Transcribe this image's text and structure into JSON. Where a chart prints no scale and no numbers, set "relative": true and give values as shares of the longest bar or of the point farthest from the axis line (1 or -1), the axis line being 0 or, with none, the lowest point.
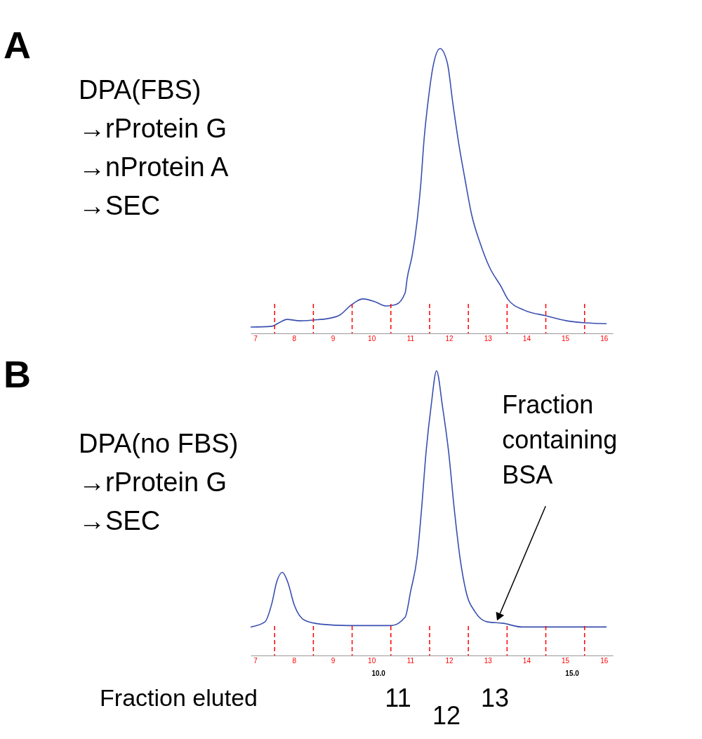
{
  "chart_data": [
    {
      "type": "line",
      "title": "A",
      "relative": true,
      "color": "#3a4fb0",
      "grid": false,
      "x": [
        6.7,
        7.25,
        7.43,
        7.64,
        7.97,
        8.33,
        8.7,
        9.0,
        9.29,
        9.6,
        9.91,
        10.2,
        10.45,
        10.69,
        10.74,
        10.87,
        11.0,
        11.09,
        11.18,
        11.29,
        11.41,
        11.59,
        11.78,
        11.92,
        12.08,
        12.23,
        12.41,
        12.63,
        12.86,
        13.17,
        13.35,
        13.77,
        14.31,
        14.86,
        15.34,
        15.89
      ],
      "values": [
        0.022,
        0.025,
        0.037,
        0.049,
        0.044,
        0.047,
        0.052,
        0.064,
        0.099,
        0.121,
        0.111,
        0.096,
        0.101,
        0.143,
        0.192,
        0.273,
        0.397,
        0.52,
        0.685,
        0.825,
        0.938,
        1.0,
        0.948,
        0.808,
        0.66,
        0.544,
        0.414,
        0.315,
        0.234,
        0.163,
        0.118,
        0.081,
        0.062,
        0.044,
        0.037,
        0.034
      ],
      "xlim": [
        6.7,
        16.05
      ],
      "xticks": [
        {
          "value": 6.82,
          "label": "7"
        },
        {
          "value": 7.82,
          "label": "8"
        },
        {
          "value": 8.82,
          "label": "9"
        },
        {
          "value": 9.82,
          "label": "10"
        },
        {
          "value": 10.82,
          "label": "11"
        },
        {
          "value": 11.82,
          "label": "12"
        },
        {
          "value": 12.82,
          "label": "13"
        },
        {
          "value": 13.82,
          "label": "14"
        },
        {
          "value": 14.82,
          "label": "15"
        },
        {
          "value": 15.82,
          "label": "16"
        }
      ],
      "ref_lines": [
        {
          "axis": "x",
          "value": 7.32,
          "color": "#ff0000",
          "line_style": "dashed"
        },
        {
          "axis": "x",
          "value": 8.32,
          "color": "#ff0000",
          "line_style": "dashed"
        },
        {
          "axis": "x",
          "value": 9.32,
          "color": "#ff0000",
          "line_style": "dashed"
        },
        {
          "axis": "x",
          "value": 10.32,
          "color": "#ff0000",
          "line_style": "dashed"
        },
        {
          "axis": "x",
          "value": 11.32,
          "color": "#ff0000",
          "line_style": "dashed"
        },
        {
          "axis": "x",
          "value": 12.32,
          "color": "#ff0000",
          "line_style": "dashed"
        },
        {
          "axis": "x",
          "value": 13.32,
          "color": "#ff0000",
          "line_style": "dashed"
        },
        {
          "axis": "x",
          "value": 14.32,
          "color": "#ff0000",
          "line_style": "dashed"
        },
        {
          "axis": "x",
          "value": 15.32,
          "color": "#ff0000",
          "line_style": "dashed"
        }
      ],
      "subtitle": "DPA(FBS)\n→rProtein G\n→nProtein A\n→SEC"
    },
    {
      "type": "line",
      "title": "B",
      "relative": true,
      "color": "#3a4fb0",
      "grid": false,
      "xlabel": "Fraction eluted",
      "x": [
        6.7,
        7.07,
        7.25,
        7.37,
        7.52,
        7.66,
        7.83,
        8.1,
        8.51,
        9.24,
        10.33,
        10.69,
        10.83,
        11.0,
        11.11,
        11.23,
        11.36,
        11.5,
        11.65,
        11.81,
        11.96,
        12.1,
        12.26,
        12.5,
        12.81,
        13.22,
        13.71,
        14.37,
        15.89
      ],
      "values": [
        0.1,
        0.118,
        0.184,
        0.257,
        0.292,
        0.257,
        0.176,
        0.123,
        0.11,
        0.105,
        0.105,
        0.135,
        0.225,
        0.348,
        0.51,
        0.716,
        0.877,
        1.0,
        0.877,
        0.716,
        0.51,
        0.348,
        0.225,
        0.152,
        0.118,
        0.113,
        0.1,
        0.1,
        0.1
      ],
      "xlim": [
        6.7,
        16.05
      ],
      "xticks": [
        {
          "value": 6.82,
          "label": "7"
        },
        {
          "value": 7.82,
          "label": "8"
        },
        {
          "value": 8.82,
          "label": "9"
        },
        {
          "value": 9.82,
          "label": "10"
        },
        {
          "value": 10.82,
          "label": "11"
        },
        {
          "value": 11.82,
          "label": "12"
        },
        {
          "value": 12.82,
          "label": "13"
        },
        {
          "value": 13.82,
          "label": "14"
        },
        {
          "value": 14.82,
          "label": "15"
        },
        {
          "value": 15.82,
          "label": "16"
        }
      ],
      "subtitle": "DPA(no FBS)\n→rProtein G\n→SEC",
      "x2lim": [
        6.7,
        16.05
      ],
      "x2ticks": [
        {
          "value": 10,
          "label": "10.0"
        },
        {
          "value": 15,
          "label": "15.0"
        }
      ],
      "ref_lines": [
        {
          "axis": "x",
          "value": 7.32,
          "color": "#ff0000",
          "line_style": "dashed"
        },
        {
          "axis": "x",
          "value": 8.32,
          "color": "#ff0000",
          "line_style": "dashed"
        },
        {
          "axis": "x",
          "value": 9.32,
          "color": "#ff0000",
          "line_style": "dashed"
        },
        {
          "axis": "x",
          "value": 10.32,
          "color": "#ff0000",
          "line_style": "dashed"
        },
        {
          "axis": "x",
          "value": 11.32,
          "color": "#ff0000",
          "line_style": "dashed"
        },
        {
          "axis": "x",
          "value": 12.32,
          "color": "#ff0000",
          "line_style": "dashed"
        },
        {
          "axis": "x",
          "value": 13.32,
          "color": "#ff0000",
          "line_style": "dashed"
        },
        {
          "axis": "x",
          "value": 14.32,
          "color": "#ff0000",
          "line_style": "dashed"
        },
        {
          "axis": "x",
          "value": 15.32,
          "color": "#ff0000",
          "line_style": "dashed"
        }
      ],
      "annotations": [
        {
          "text": "Fraction containing BSA",
          "x": 13.1,
          "y": 0.135
        },
        "11",
        "12",
        "13"
      ]
    }
  ]
}
